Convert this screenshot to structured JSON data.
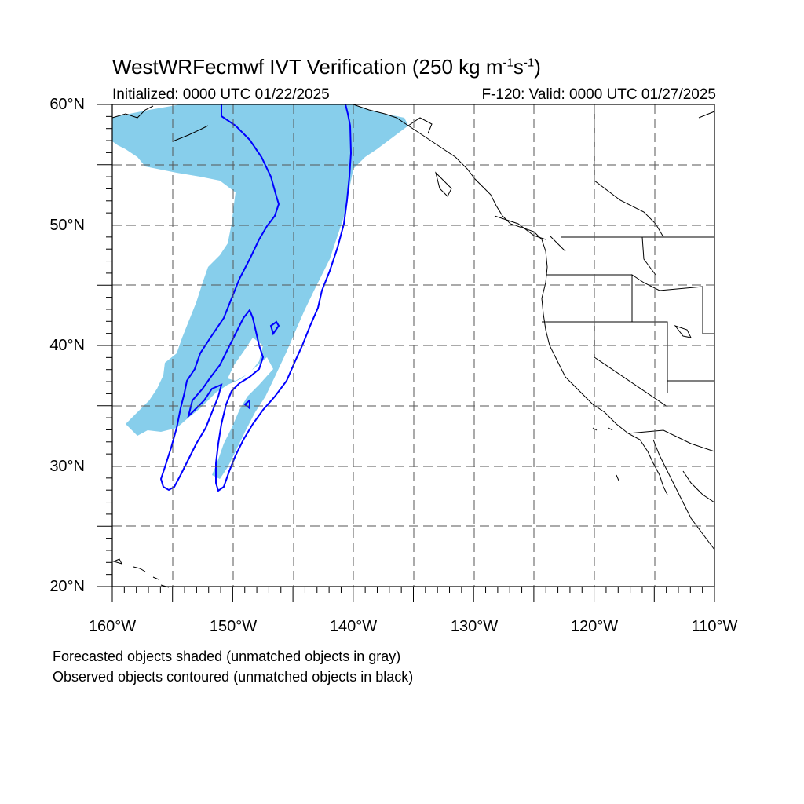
{
  "title": {
    "main": "WestWRFecmwf IVT Verification (250 kg m",
    "sup1": "-1",
    "mid": "s",
    "sup2": "-1",
    "end": ")"
  },
  "subtitle_left": "Initialized: 0000 UTC 01/22/2025",
  "subtitle_right": "F-120: Valid: 0000 UTC 01/27/2025",
  "lat_labels": [
    "60°N",
    "50°N",
    "40°N",
    "30°N",
    "20°N"
  ],
  "lon_labels": [
    "160°W",
    "150°W",
    "140°W",
    "130°W",
    "120°W",
    "110°W"
  ],
  "footnotes": [
    "Forecasted objects shaded (unmatched objects in gray)",
    "Observed objects contoured (unmatched objects in black)"
  ],
  "colors": {
    "forecast_fill": "#87ceeb",
    "observed_contour": "#0000ff",
    "grid": "#555555",
    "coast": "#000000"
  }
}
